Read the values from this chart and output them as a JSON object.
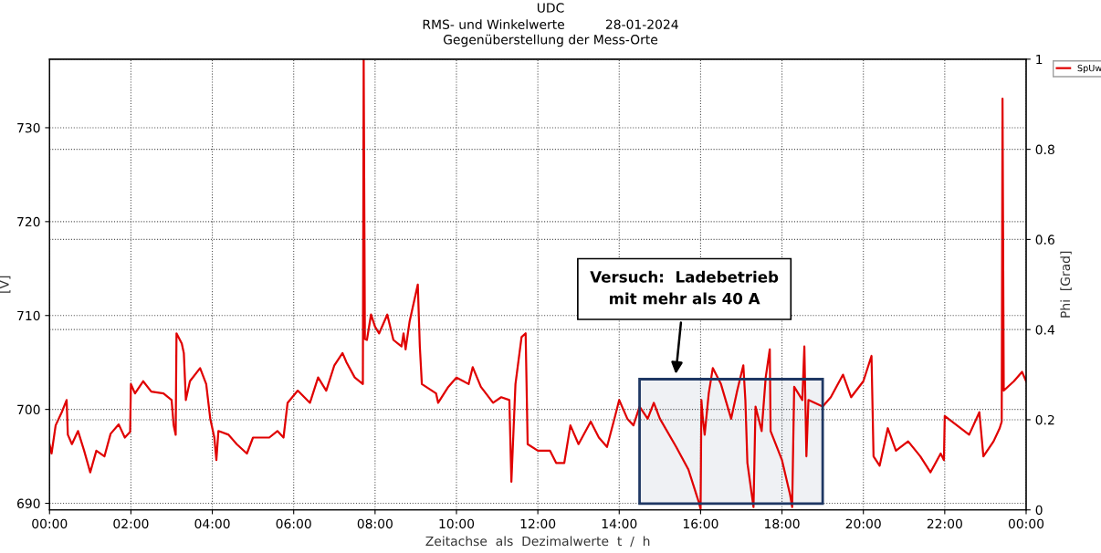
{
  "chart_data": {
    "type": "line",
    "title": "UDC",
    "subtitle": "RMS- und Winkelwerte          28-01-2024\nGegenüberstellung der Mess-Orte",
    "xlabel": "Zeitachse  als  Dezimalwerte  t  /  h",
    "ylabel": "[V]",
    "y2label": "Phi  [Grad]",
    "xlim": [
      0,
      24
    ],
    "xticks": [
      {
        "value": 0,
        "label": "00:00"
      },
      {
        "value": 2,
        "label": "02:00"
      },
      {
        "value": 4,
        "label": "04:00"
      },
      {
        "value": 6,
        "label": "06:00"
      },
      {
        "value": 8,
        "label": "08:00"
      },
      {
        "value": 10,
        "label": "10:00"
      },
      {
        "value": 12,
        "label": "12:00"
      },
      {
        "value": 14,
        "label": "14:00"
      },
      {
        "value": 16,
        "label": "16:00"
      },
      {
        "value": 18,
        "label": "18:00"
      },
      {
        "value": 20,
        "label": "20:00"
      },
      {
        "value": 22,
        "label": "22:00"
      },
      {
        "value": 24,
        "label": "00:00"
      }
    ],
    "ylim": [
      689.3,
      737.3
    ],
    "yticks": [
      690,
      700,
      710,
      720,
      730
    ],
    "y2lim": [
      0,
      1
    ],
    "y2ticks": [
      0,
      0.2,
      0.4,
      0.6,
      0.8,
      1
    ],
    "grid": true,
    "legend": "right",
    "line_style": "solid",
    "marker": "none",
    "series": [
      {
        "name": "SpUw",
        "color": "#e00000",
        "x": [
          0.0,
          0.05,
          0.15,
          0.3,
          0.42,
          0.45,
          0.55,
          0.7,
          0.85,
          1.0,
          1.15,
          1.35,
          1.5,
          1.7,
          1.85,
          1.98,
          2.0,
          2.1,
          2.3,
          2.5,
          2.8,
          3.0,
          3.05,
          3.1,
          3.12,
          3.25,
          3.3,
          3.35,
          3.45,
          3.7,
          3.85,
          3.95,
          4.05,
          4.1,
          4.15,
          4.4,
          4.6,
          4.85,
          5.0,
          5.4,
          5.6,
          5.75,
          5.85,
          6.1,
          6.4,
          6.6,
          6.8,
          7.0,
          7.2,
          7.3,
          7.5,
          7.7,
          7.72,
          7.75,
          7.8,
          7.9,
          8.0,
          8.1,
          8.3,
          8.45,
          8.65,
          8.7,
          8.75,
          8.85,
          9.05,
          9.1,
          9.15,
          9.5,
          9.55,
          9.8,
          10.0,
          10.3,
          10.4,
          10.6,
          10.9,
          11.1,
          11.3,
          11.35,
          11.45,
          11.6,
          11.7,
          11.75,
          12.0,
          12.3,
          12.45,
          12.65,
          12.8,
          13.0,
          13.3,
          13.5,
          13.7,
          13.9,
          14.0,
          14.2,
          14.35,
          14.5,
          14.7,
          14.85,
          15.0,
          15.4,
          15.7,
          15.95,
          16.0,
          16.02,
          16.05,
          16.1,
          16.2,
          16.3,
          16.5,
          16.75,
          16.9,
          17.05,
          17.1,
          17.15,
          17.3,
          17.35,
          17.5,
          17.6,
          17.7,
          17.72,
          18.0,
          18.2,
          18.25,
          18.3,
          18.5,
          18.55,
          18.6,
          18.65,
          19.0,
          19.2,
          19.5,
          19.7,
          20.0,
          20.2,
          20.25,
          20.4,
          20.6,
          20.8,
          21.1,
          21.4,
          21.65,
          21.9,
          21.98,
          22.0,
          22.3,
          22.6,
          22.85,
          22.95,
          23.2,
          23.35,
          23.4,
          23.42,
          23.45,
          23.7,
          23.9,
          24.0
        ],
        "values": [
          696.3,
          695.3,
          698.3,
          699.7,
          701,
          697.3,
          696.3,
          697.7,
          695.6,
          693.3,
          695.6,
          695,
          697.4,
          698.4,
          697,
          697.6,
          702.7,
          701.7,
          703,
          701.9,
          701.7,
          701,
          698.3,
          697.3,
          708.1,
          707,
          706,
          701,
          703,
          704.4,
          702.7,
          699,
          697,
          694.6,
          697.7,
          697.3,
          696.3,
          695.3,
          697,
          697,
          697.7,
          697,
          700.7,
          702,
          700.7,
          703.4,
          702,
          704.7,
          706,
          705,
          703.4,
          702.7,
          737.3,
          707.5,
          707.4,
          710.1,
          708.8,
          708.1,
          710.1,
          707.4,
          706.7,
          708.1,
          706.4,
          709.4,
          713.3,
          706.7,
          702.7,
          701.7,
          700.7,
          702.4,
          703.4,
          702.7,
          704.5,
          702.4,
          700.7,
          701.3,
          701,
          692.3,
          702.7,
          707.7,
          708.1,
          696.3,
          695.6,
          695.6,
          694.3,
          694.3,
          698.3,
          696.3,
          698.7,
          697,
          696,
          699.3,
          701,
          699,
          698.3,
          700.3,
          699,
          700.7,
          699,
          696,
          693.6,
          690.2,
          689.4,
          701,
          699.3,
          697.3,
          701.7,
          704.4,
          702.7,
          699,
          702,
          704.7,
          701,
          694.3,
          689.6,
          700.3,
          697.7,
          703.4,
          706.4,
          697.7,
          694.6,
          690.9,
          689.6,
          702.4,
          701,
          706.7,
          695,
          701,
          700.3,
          701.3,
          703.7,
          701.3,
          703,
          705.7,
          695,
          694,
          698,
          695.6,
          696.6,
          695,
          693.3,
          695.3,
          694.6,
          699.3,
          698.3,
          697.3,
          699.7,
          695,
          696.6,
          698,
          698.7,
          733.1,
          702,
          703,
          704,
          703
        ]
      }
    ],
    "bands": [
      {
        "axis": "x",
        "from": 14.5,
        "to": 19.0,
        "color": "#1f3864"
      }
    ],
    "annotations": [
      "Versuch:  Ladebetrieb\nmit mehr als 40 A"
    ]
  }
}
